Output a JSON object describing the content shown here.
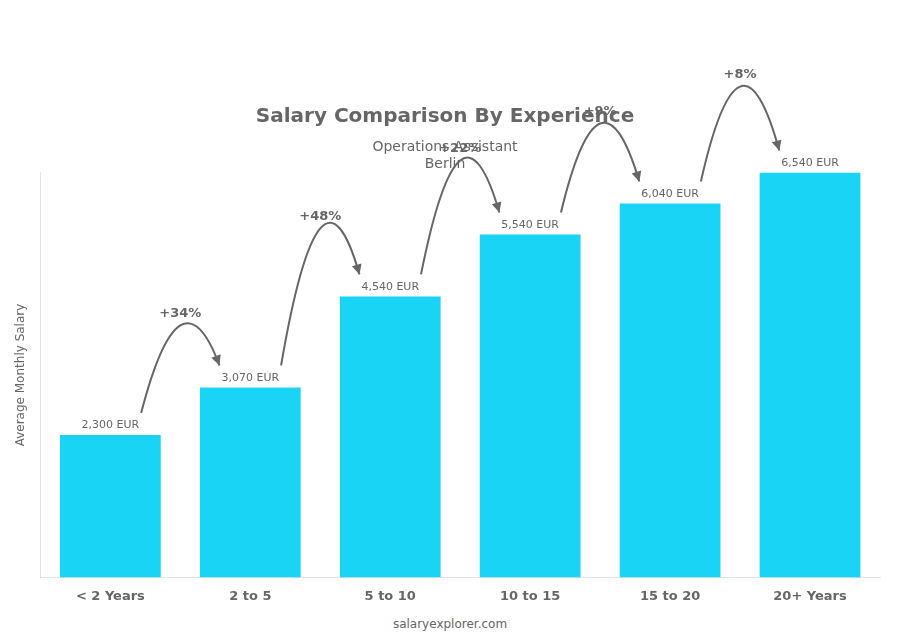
{
  "chart_data": {
    "type": "bar",
    "title": "Salary Comparison By Experience",
    "subtitle": [
      "Operations Assistant",
      "Berlin"
    ],
    "ylabel": "Average Monthly Salary",
    "categories": [
      "< 2 Years",
      "2 to 5",
      "5 to 10",
      "10 to 15",
      "15 to 20",
      "20+ Years"
    ],
    "values": [
      2300,
      3070,
      4540,
      5540,
      6040,
      6540
    ],
    "value_labels": [
      "2,300 EUR",
      "3,070 EUR",
      "4,540 EUR",
      "5,540 EUR",
      "6,040 EUR",
      "6,540 EUR"
    ],
    "data_labels": true,
    "annotations": [
      "+34%",
      "+48%",
      "+22%",
      "+9%",
      "+8%"
    ],
    "source": "salaryexplorer.com",
    "color": "#1ad4f5",
    "ylim": [
      0,
      6540
    ],
    "tick_labels": "x",
    "grid": false
  }
}
